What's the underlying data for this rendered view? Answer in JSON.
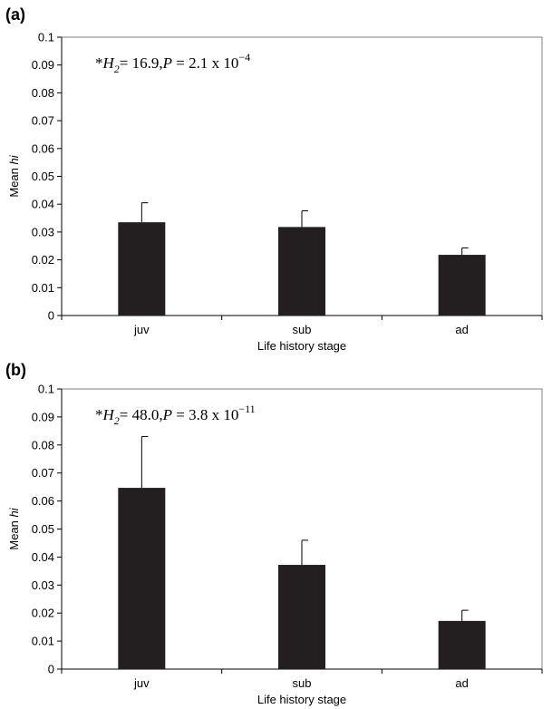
{
  "chart_data": [
    {
      "type": "bar",
      "panel_label": "(a)",
      "categories": [
        "juv",
        "sub",
        "ad"
      ],
      "values": [
        0.0335,
        0.0318,
        0.0218
      ],
      "errors": [
        0.007,
        0.0058,
        0.0025
      ],
      "ylim": [
        0,
        0.1
      ],
      "yticks": [
        "0",
        "0.01",
        "0.02",
        "0.03",
        "0.04",
        "0.05",
        "0.06",
        "0.07",
        "0.08",
        "0.09",
        "0.1"
      ],
      "ylabel": "Mean hi",
      "xlabel": "Life history stage",
      "annotation": {
        "prefix": "*",
        "stat_letter": "H",
        "stat_sub": "2",
        "stat_value": "= 16.9,",
        "p_letter": "P",
        "p_text": " = 2.1 x 10",
        "p_exp": "−4"
      },
      "bar_color": "#231f20",
      "grid": false
    },
    {
      "type": "bar",
      "panel_label": "(b)",
      "categories": [
        "juv",
        "sub",
        "ad"
      ],
      "values": [
        0.0647,
        0.0372,
        0.0172
      ],
      "errors": [
        0.0183,
        0.0088,
        0.0038
      ],
      "ylim": [
        0,
        0.1
      ],
      "yticks": [
        "0",
        "0.01",
        "0.02",
        "0.03",
        "0.04",
        "0.05",
        "0.06",
        "0.07",
        "0.08",
        "0.09",
        "0.1"
      ],
      "ylabel": "Mean hi",
      "xlabel": "Life history stage",
      "annotation": {
        "prefix": "*",
        "stat_letter": "H",
        "stat_sub": "2",
        "stat_value": "= 48.0,",
        "p_letter": "P",
        "p_text": " = 3.8 x 10",
        "p_exp": "−11"
      },
      "bar_color": "#231f20",
      "grid": false
    }
  ]
}
